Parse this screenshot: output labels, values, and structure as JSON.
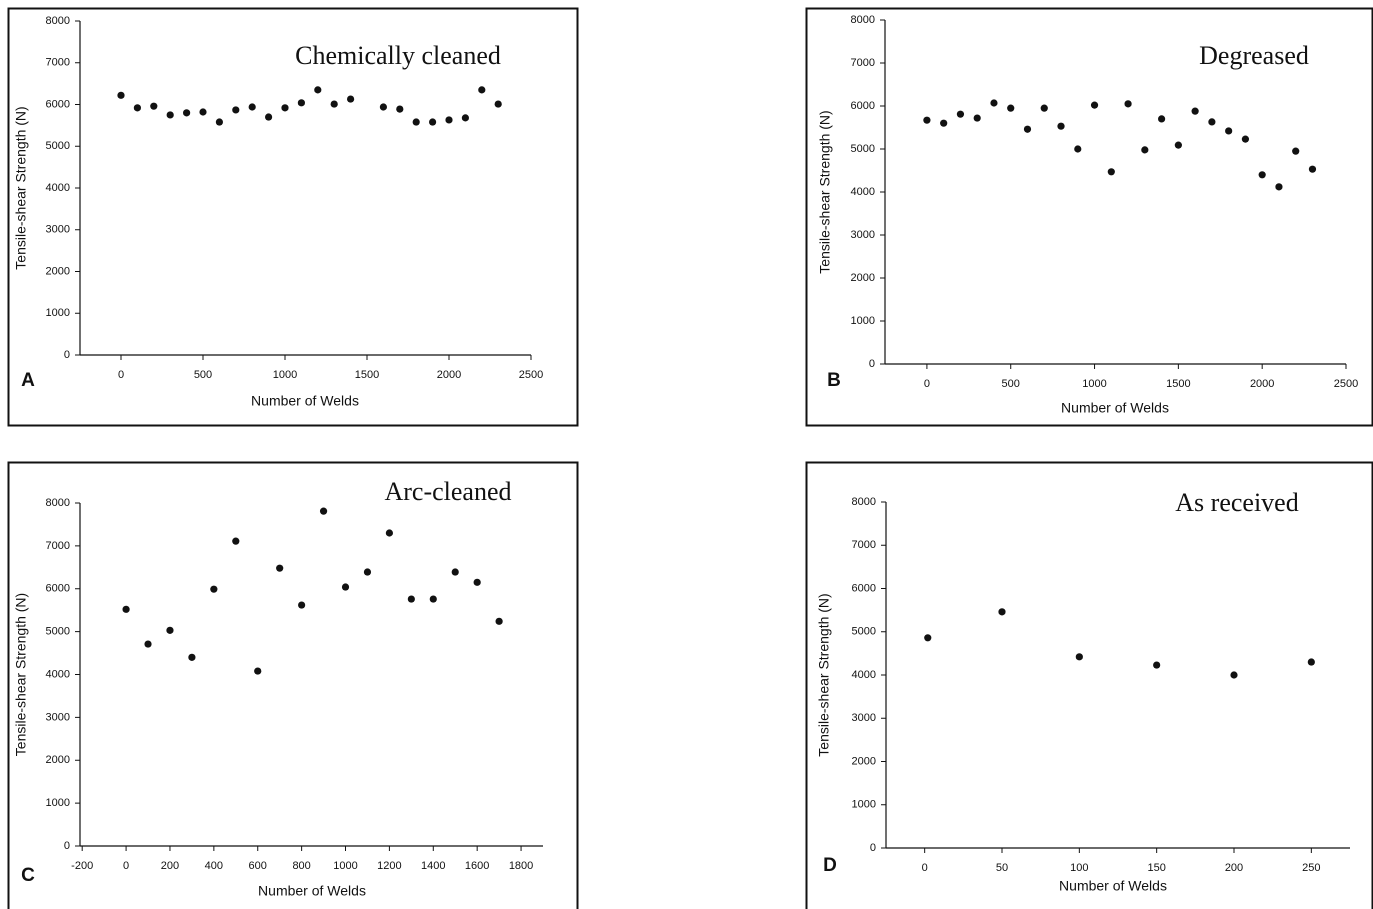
{
  "chart_data": [
    {
      "type": "scatter",
      "title": "Chemically cleaned",
      "panel_label": "A",
      "x_label": "Number of Welds",
      "y_label": "Tensile-shear Strength (N)",
      "x": [
        0,
        100,
        200,
        300,
        400,
        500,
        600,
        700,
        800,
        900,
        1000,
        1100,
        1200,
        1300,
        1400,
        1600,
        1700,
        1800,
        1900,
        2000,
        2100,
        2200,
        2300
      ],
      "values": [
        6220,
        5920,
        5960,
        5750,
        5800,
        5820,
        5580,
        5870,
        5940,
        5700,
        5920,
        6040,
        6350,
        6010,
        6130,
        5940,
        5890,
        5580,
        5580,
        5630,
        5680,
        6350,
        6010
      ],
      "color": "#111111",
      "xlim": [
        -250,
        2500
      ],
      "ylim": [
        0,
        8000
      ],
      "xticks": [
        0,
        500,
        1000,
        1500,
        2000,
        2500
      ],
      "yticks": [
        0,
        1000,
        2000,
        3000,
        4000,
        5000,
        6000,
        7000,
        8000
      ],
      "grid": false
    },
    {
      "type": "scatter",
      "title": "Degreased",
      "panel_label": "B",
      "x_label": "Number of Welds",
      "y_label": "Tensile-shear Strength (N)",
      "x": [
        0,
        100,
        200,
        300,
        400,
        500,
        600,
        700,
        800,
        900,
        1000,
        1100,
        1200,
        1300,
        1400,
        1500,
        1600,
        1700,
        1800,
        1900,
        2000,
        2100,
        2200,
        2300
      ],
      "values": [
        5670,
        5600,
        5810,
        5720,
        6070,
        5950,
        5460,
        5950,
        5530,
        5000,
        6020,
        4470,
        6050,
        4980,
        5700,
        5090,
        5880,
        5630,
        5420,
        5230,
        4400,
        4120,
        4950,
        4530
      ],
      "color": "#111111",
      "xlim": [
        -250,
        2500
      ],
      "ylim": [
        0,
        8000
      ],
      "xticks": [
        0,
        500,
        1000,
        1500,
        2000,
        2500
      ],
      "yticks": [
        0,
        1000,
        2000,
        3000,
        4000,
        5000,
        6000,
        7000,
        8000
      ],
      "grid": false
    },
    {
      "type": "scatter",
      "title": "Arc-cleaned",
      "panel_label": "C",
      "x_label": "Number of Welds",
      "y_label": "Tensile-shear Strength (N)",
      "x": [
        0,
        100,
        200,
        300,
        400,
        500,
        600,
        700,
        800,
        900,
        1000,
        1100,
        1200,
        1300,
        1400,
        1500,
        1600,
        1700
      ],
      "values": [
        5520,
        4710,
        5030,
        4400,
        5990,
        7110,
        4080,
        6480,
        5620,
        7810,
        6040,
        6390,
        7300,
        5760,
        5760,
        6390,
        6150,
        5240
      ],
      "color": "#111111",
      "xlim": [
        -210,
        1900
      ],
      "ylim": [
        0,
        8000
      ],
      "xticks": [
        -200,
        0,
        200,
        400,
        600,
        800,
        1000,
        1200,
        1400,
        1600,
        1800
      ],
      "yticks": [
        0,
        1000,
        2000,
        3000,
        4000,
        5000,
        6000,
        7000,
        8000
      ],
      "grid": false
    },
    {
      "type": "scatter",
      "title": "As  received",
      "panel_label": "D",
      "x_label": "Number of Welds",
      "y_label": "Tensile-shear Strength (N)",
      "x": [
        2,
        50,
        100,
        150,
        200,
        250
      ],
      "values": [
        4860,
        5460,
        4420,
        4230,
        4000,
        4300
      ],
      "color": "#111111",
      "xlim": [
        -25,
        275
      ],
      "ylim": [
        0,
        8000
      ],
      "xticks": [
        0,
        50,
        100,
        150,
        200,
        250
      ],
      "yticks": [
        0,
        1000,
        2000,
        3000,
        4000,
        5000,
        6000,
        7000,
        8000
      ],
      "grid": false
    }
  ]
}
